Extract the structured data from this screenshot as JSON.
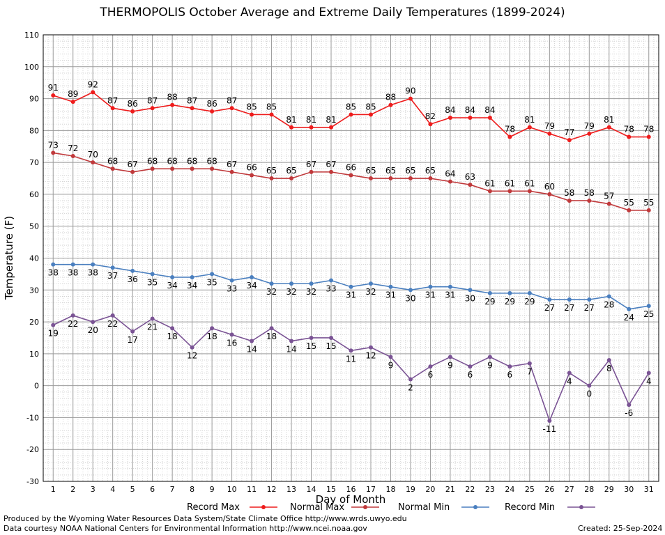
{
  "chart_data": {
    "type": "line",
    "title": "THERMOPOLIS October Average and Extreme Daily Temperatures (1899-2024)",
    "xlabel": "Day of Month",
    "ylabel": "Temperature (F)",
    "x": [
      1,
      2,
      3,
      4,
      5,
      6,
      7,
      8,
      9,
      10,
      11,
      12,
      13,
      14,
      15,
      16,
      17,
      18,
      19,
      20,
      21,
      22,
      23,
      24,
      25,
      26,
      27,
      28,
      29,
      30,
      31
    ],
    "xlim": [
      0.5,
      31.5
    ],
    "ylim": [
      -30,
      110
    ],
    "yticks": [
      -30,
      -20,
      -10,
      0,
      10,
      20,
      30,
      40,
      50,
      60,
      70,
      80,
      90,
      100,
      110
    ],
    "grid": true,
    "legend_position": "bottom",
    "series": [
      {
        "name": "Record Max",
        "color": "#ee1c1c",
        "label_position": "above",
        "values": [
          91,
          89,
          92,
          87,
          86,
          87,
          88,
          87,
          86,
          87,
          85,
          85,
          81,
          81,
          81,
          85,
          85,
          88,
          90,
          82,
          84,
          84,
          84,
          78,
          81,
          79,
          77,
          79,
          81,
          78,
          78
        ]
      },
      {
        "name": "Normal Max",
        "color": "#c0393b",
        "label_position": "above",
        "values": [
          73,
          72,
          70,
          68,
          67,
          68,
          68,
          68,
          68,
          67,
          66,
          65,
          65,
          67,
          67,
          66,
          65,
          65,
          65,
          65,
          64,
          63,
          61,
          61,
          61,
          60,
          58,
          58,
          57,
          55,
          55
        ]
      },
      {
        "name": "Normal Min",
        "color": "#4a7fbf",
        "label_position": "below",
        "values": [
          38,
          38,
          38,
          37,
          36,
          35,
          34,
          34,
          35,
          33,
          34,
          32,
          32,
          32,
          33,
          31,
          32,
          31,
          30,
          31,
          31,
          30,
          29,
          29,
          29,
          27,
          27,
          27,
          28,
          24,
          25
        ]
      },
      {
        "name": "Record Min",
        "color": "#7a5394",
        "label_position": "below",
        "values": [
          19,
          22,
          20,
          22,
          17,
          21,
          18,
          12,
          18,
          16,
          14,
          18,
          14,
          15,
          15,
          11,
          12,
          9,
          2,
          6,
          9,
          6,
          9,
          6,
          7,
          -11,
          4,
          0,
          8,
          -6,
          4
        ]
      }
    ]
  },
  "footer": {
    "produced_by": "Produced by the Wyoming Water Resources Data System/State Climate Office http://www.wrds.uwyo.edu",
    "data_courtesy": "Data courtesy NOAA National Centers for Environmental Information http://www.ncei.noaa.gov",
    "created": "Created:  25-Sep-2024"
  }
}
